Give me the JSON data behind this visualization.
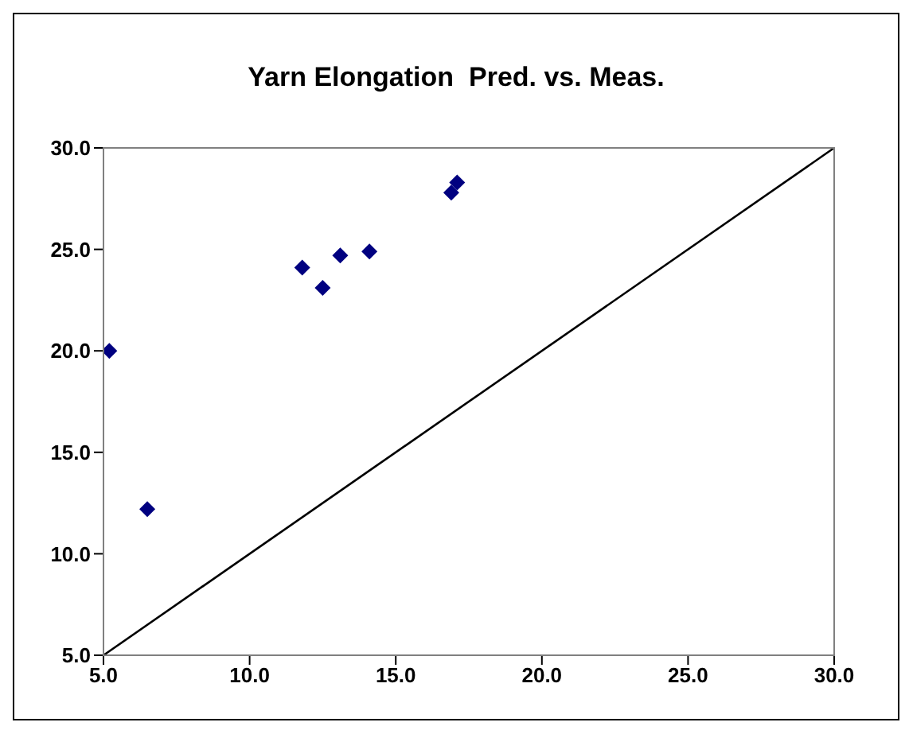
{
  "chart_data": {
    "type": "scatter",
    "title": "Yarn Elongation  Pred. vs. Meas.",
    "xlim": [
      5,
      30
    ],
    "ylim": [
      5,
      30
    ],
    "xticks": [
      {
        "value": 5,
        "label": "5.0"
      },
      {
        "value": 10,
        "label": "10.0"
      },
      {
        "value": 15,
        "label": "15.0"
      },
      {
        "value": 20,
        "label": "20.0"
      },
      {
        "value": 25,
        "label": "25.0"
      },
      {
        "value": 30,
        "label": "30.0"
      }
    ],
    "yticks": [
      {
        "value": 5,
        "label": "5.0"
      },
      {
        "value": 10,
        "label": "10.0"
      },
      {
        "value": 15,
        "label": "15.0"
      },
      {
        "value": 20,
        "label": "20.0"
      },
      {
        "value": 25,
        "label": "25.0"
      },
      {
        "value": 30,
        "label": "30.0"
      }
    ],
    "grid": false,
    "legend": false,
    "series": [
      {
        "color": "#000080",
        "marker": "diamond",
        "x": [
          5.2,
          6.5,
          11.8,
          12.5,
          13.1,
          14.1,
          16.9,
          17.1
        ],
        "values": [
          20.0,
          12.2,
          24.1,
          23.1,
          24.7,
          24.9,
          27.8,
          28.3
        ]
      },
      {
        "type": "line",
        "color": "#000000",
        "marker": "none",
        "x": [
          5,
          30
        ],
        "values": [
          5,
          30
        ]
      }
    ]
  }
}
